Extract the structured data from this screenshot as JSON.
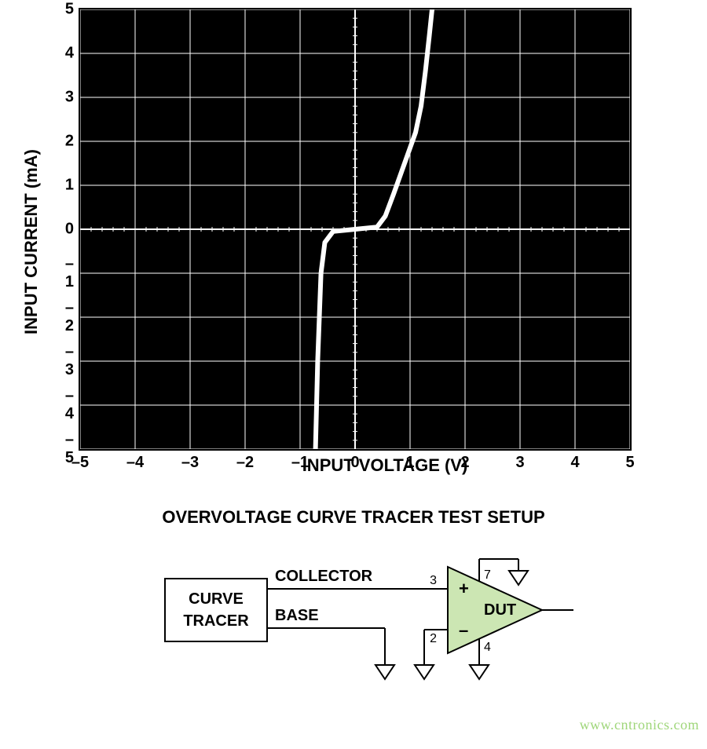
{
  "chart": {
    "type": "line",
    "title": null,
    "background_color": "#000000",
    "grid_color": "#ffffff",
    "axis_color": "#ffffff",
    "trace_color": "#ffffff",
    "trace_width": 6,
    "grid_line_width": 1,
    "axis_line_width": 2,
    "xlabel": "INPUT VOLTAGE (V)",
    "ylabel": "INPUT CURRENT (mA)",
    "label_fontsize": 22,
    "tick_fontsize": 20,
    "xlim": [
      -5,
      5
    ],
    "ylim": [
      -5,
      5
    ],
    "xtick_step": 1,
    "ytick_step": 1,
    "minor_ticks_per_major": 5,
    "minor_tick_length": 6,
    "minor_tick_color": "#ffffff",
    "x_ticks": [
      -5,
      -4,
      -3,
      -2,
      -1,
      0,
      1,
      2,
      3,
      4,
      5
    ],
    "y_ticks": [
      -5,
      -4,
      -3,
      -2,
      -1,
      0,
      1,
      2,
      3,
      4,
      5
    ],
    "x_labels": [
      "–5",
      "–4",
      "–3",
      "–2",
      "–1",
      "0",
      "1",
      "2",
      "3",
      "4",
      "5"
    ],
    "y_labels": [
      "–5",
      "–4",
      "–3",
      "–2",
      "–1",
      "0",
      "1",
      "2",
      "3",
      "4",
      "5"
    ],
    "curve_points": [
      [
        -0.72,
        -5.0
      ],
      [
        -0.7,
        -4.0
      ],
      [
        -0.68,
        -3.0
      ],
      [
        -0.65,
        -2.0
      ],
      [
        -0.62,
        -1.0
      ],
      [
        -0.55,
        -0.3
      ],
      [
        -0.4,
        -0.05
      ],
      [
        0.0,
        0.0
      ],
      [
        0.4,
        0.05
      ],
      [
        0.55,
        0.3
      ],
      [
        0.7,
        0.8
      ],
      [
        0.9,
        1.5
      ],
      [
        1.1,
        2.2
      ],
      [
        1.2,
        2.8
      ],
      [
        1.28,
        3.6
      ],
      [
        1.35,
        4.4
      ],
      [
        1.4,
        5.0
      ]
    ]
  },
  "diagram": {
    "title": "OVERVOLTAGE CURVE TRACER TEST SETUP",
    "tracer_box_lines": [
      "CURVE",
      "TRACER"
    ],
    "collector_label": "COLLECTOR",
    "base_label": "BASE",
    "dut_label": "DUT",
    "pin_plus": "+",
    "pin_minus": "–",
    "pin_3": "3",
    "pin_2": "2",
    "pin_7": "7",
    "pin_4": "4",
    "line_color": "#000000",
    "line_width": 2,
    "opamp_fill": "#cce6b3",
    "opamp_stroke": "#000000",
    "font_size": 20
  },
  "watermark": "www.cntronics.com"
}
